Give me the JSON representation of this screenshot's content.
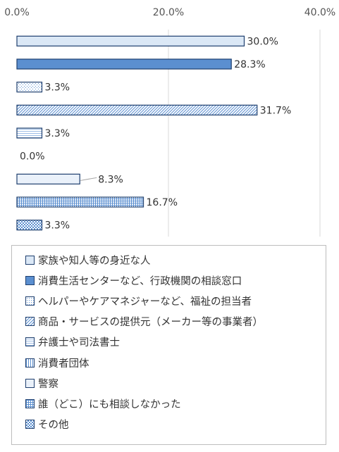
{
  "chart_data": {
    "type": "bar",
    "orientation": "horizontal",
    "xlim": [
      0,
      40
    ],
    "tick_labels": [
      "0.0%",
      "20.0%",
      "40.0%"
    ],
    "tick_values": [
      0,
      20,
      40
    ],
    "grid": true,
    "legend_position": "bottom",
    "categories": [
      "家族や知人等の身近な人",
      "消費生活センターなど、行政機関の相談窓口",
      "ヘルパーやケアマネジャーなど、福祉の担当者",
      "商品・サービスの提供元（メーカー等の事業者）",
      "弁護士や司法書士",
      "消費者団体",
      "警察",
      "誰（どこ）にも相談しなかった",
      "その他"
    ],
    "values": [
      30.0,
      28.3,
      3.3,
      31.7,
      3.3,
      0.0,
      8.3,
      16.7,
      3.3
    ],
    "value_labels": [
      "30.0%",
      "28.3%",
      "3.3%",
      "31.7%",
      "3.3%",
      "0.0%",
      "8.3%",
      "16.7%",
      "3.3%"
    ],
    "patterns": [
      "light",
      "solid",
      "dots",
      "diagonal",
      "hlines",
      "vlines",
      "plain",
      "grid",
      "checker"
    ],
    "colors": {
      "border": "#1f3f6e",
      "light_fill": "#dbe8f6",
      "solid_fill": "#5b8fd0",
      "pattern_fg": "#5b8fd0",
      "gridline": "#d9d9d9",
      "leader_line": "#a6a6a6"
    }
  }
}
